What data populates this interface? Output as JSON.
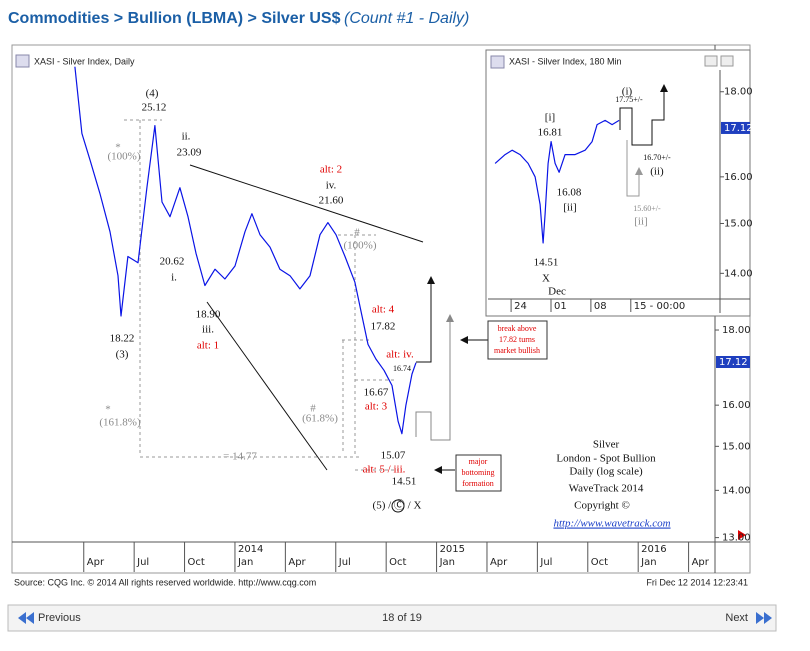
{
  "header": {
    "title": "Commodities > Bullion (LBMA) > Silver US$",
    "subtitle": "(Count #1 - Daily)"
  },
  "chart_data": [
    {
      "type": "line",
      "title": "XASI - Silver Index, Daily",
      "color": "#0a14e6",
      "log_scale": true,
      "x": [
        2013.206,
        2013.241,
        2013.281,
        2013.33,
        2013.38,
        2013.42,
        2013.435,
        2013.469,
        2013.519,
        2013.563,
        2013.603,
        2013.638,
        2013.678,
        2013.727,
        2013.767,
        2013.807,
        2013.851,
        2013.901,
        2013.95,
        2014.0,
        2014.05,
        2014.084,
        2014.124,
        2014.174,
        2014.223,
        2014.273,
        2014.322,
        2014.372,
        2014.422,
        2014.461,
        2014.501,
        2014.546,
        2014.595,
        2014.63,
        2014.66,
        2014.699,
        2014.739,
        2014.779,
        2014.809,
        2014.828,
        2014.848,
        2014.878,
        2014.898
      ],
      "values": [
        27.2,
        24.5,
        23.5,
        22.3,
        21.0,
        19.6,
        18.4,
        20.2,
        20.0,
        22.5,
        24.8,
        22.0,
        21.5,
        22.5,
        21.5,
        20.3,
        19.3,
        19.8,
        19.5,
        19.9,
        21.0,
        21.6,
        20.9,
        20.5,
        19.8,
        19.6,
        19.2,
        19.6,
        20.9,
        21.3,
        20.9,
        20.2,
        19.4,
        18.4,
        17.6,
        17.2,
        16.9,
        16.5,
        15.6,
        15.3,
        16.0,
        16.8,
        17.1
      ],
      "xlim": [
        2012.909,
        2016.381
      ],
      "xticks": [
        {
          "value": 2013.25,
          "label": "Apr"
        },
        {
          "value": 2013.5,
          "label": "Jul"
        },
        {
          "value": 2013.75,
          "label": "Oct"
        },
        {
          "value": 2014.0,
          "label": "Jan"
        },
        {
          "value": 2014.25,
          "label": "Apr"
        },
        {
          "value": 2014.5,
          "label": "Jul"
        },
        {
          "value": 2014.75,
          "label": "Oct"
        },
        {
          "value": 2015.0,
          "label": "Jan"
        },
        {
          "value": 2015.25,
          "label": "Apr"
        },
        {
          "value": 2015.5,
          "label": "Jul"
        },
        {
          "value": 2015.75,
          "label": "Oct"
        },
        {
          "value": 2016.0,
          "label": "Jan"
        },
        {
          "value": 2016.25,
          "label": "Apr"
        }
      ],
      "year_ticks": [
        2014,
        2015,
        2016
      ],
      "ylim": [
        12.75,
        27.4
      ],
      "yticks": [
        {
          "value": 18,
          "label": "18.00"
        },
        {
          "value": 16,
          "label": "16.00"
        },
        {
          "value": 15,
          "label": "15.00"
        },
        {
          "value": 14,
          "label": "14.00"
        },
        {
          "value": 13,
          "label": "13.00"
        }
      ],
      "last_price": 17.12,
      "annotations": [
        "(4)",
        "25.12",
        "ii.",
        "23.09",
        "alt: 2",
        "iv.",
        "21.60",
        "#",
        "(100%)",
        "20.62",
        "i.",
        "*",
        "(100%)",
        "18.22",
        "(3)",
        "18.90",
        "iii.",
        "alt: 1",
        "alt: 4",
        "17.82",
        "alt: iv.",
        "16.74",
        "16.67",
        "alt: 3",
        "#",
        "(61.8%)",
        "15.07",
        "alt: 5 / iii.",
        "14.51",
        "(5) / Ⓒ / X",
        "*",
        "(161.8%)",
        "= 14.77",
        "Silver",
        "London - Spot Bullion",
        "Daily (log scale)",
        "WaveTrack 2014",
        "Copyright ©",
        "http://www.wavetrack.com"
      ],
      "callouts": [
        {
          "lines": [
            "break above",
            "17.82 turns",
            "market bullish"
          ]
        },
        {
          "lines": [
            "major",
            "bottoming",
            "formation"
          ]
        }
      ]
    },
    {
      "type": "line",
      "title": "XASI - Silver Index, 180 Min",
      "color": "#0a14e6",
      "log_scale": true,
      "x": [
        325.19,
        326.95,
        328.18,
        329.58,
        330.98,
        332.21,
        333.09,
        333.61,
        333.96,
        334.49,
        335.02,
        335.72,
        336.42,
        337.47,
        339.23,
        340.98,
        342.21,
        343.09,
        344.49,
        345.72,
        346.95
      ],
      "values": [
        16.3,
        16.5,
        16.6,
        16.5,
        16.3,
        16.0,
        15.4,
        14.6,
        15.2,
        16.3,
        16.8,
        16.3,
        16.1,
        16.5,
        16.5,
        16.6,
        16.8,
        17.2,
        17.3,
        17.2,
        17.3
      ],
      "xlim": [
        324.3,
        364.65
      ],
      "xticks": [
        {
          "value": 328,
          "label": "24"
        },
        {
          "value": 335,
          "label": "01"
        },
        {
          "value": 342,
          "label": "08"
        },
        {
          "value": 349,
          "label": "15 - 00:00"
        }
      ],
      "ylim": [
        13.53,
        18.55
      ],
      "yticks": [
        {
          "value": 18,
          "label": "18.00"
        },
        {
          "value": 16,
          "label": "16.00"
        },
        {
          "value": 15,
          "label": "15.00"
        },
        {
          "value": 14,
          "label": "14.00"
        }
      ],
      "last_price": 17.12,
      "annotations": [
        "[i]",
        "16.81",
        "(i)",
        "17.75+/-",
        "16.08",
        "[ii]",
        "16.70+/-",
        "(ii)",
        "15.60+/-",
        "[ii]",
        "14.51",
        "X",
        "Dec"
      ]
    }
  ],
  "footer": {
    "source": "Source: CQG Inc. © 2014 All rights reserved worldwide. http://www.cqg.com",
    "timestamp": "Fri Dec 12 2014 12:23:41"
  },
  "nav": {
    "previous": "Previous",
    "position": "18 of 19",
    "next": "Next"
  }
}
